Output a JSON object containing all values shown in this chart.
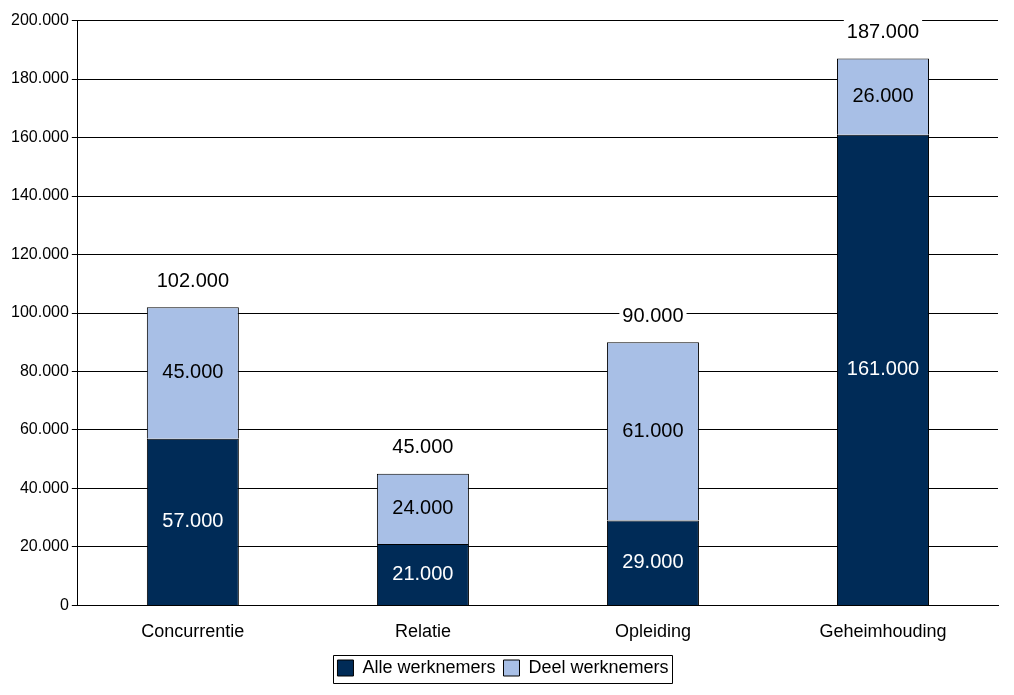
{
  "chart_data": {
    "type": "bar",
    "stacked": true,
    "categories": [
      "Concurrentie",
      "Relatie",
      "Opleiding",
      "Geheimhouding"
    ],
    "series": [
      {
        "name": "Alle werknemers",
        "color": "#002b57",
        "values": [
          57000,
          21000,
          29000,
          161000
        ],
        "value_labels": [
          "57.000",
          "21.000",
          "29.000",
          "161.000"
        ]
      },
      {
        "name": "Deel werknemers",
        "color": "#a8bfe6",
        "values": [
          45000,
          24000,
          61000,
          26000
        ],
        "value_labels": [
          "45.000",
          "24.000",
          "61.000",
          "26.000"
        ]
      }
    ],
    "totals": [
      "102.000",
      "45.000",
      "90.000",
      "187.000"
    ],
    "ylim": [
      0,
      200000
    ],
    "yticks": [
      {
        "value": 0,
        "label": "0"
      },
      {
        "value": 20000,
        "label": "20.000"
      },
      {
        "value": 40000,
        "label": "40.000"
      },
      {
        "value": 60000,
        "label": "60.000"
      },
      {
        "value": 80000,
        "label": "80.000"
      },
      {
        "value": 100000,
        "label": "100.000"
      },
      {
        "value": 120000,
        "label": "120.000"
      },
      {
        "value": 140000,
        "label": "140.000"
      },
      {
        "value": 160000,
        "label": "160.000"
      },
      {
        "value": 180000,
        "label": "180.000"
      },
      {
        "value": 200000,
        "label": "200.000"
      }
    ],
    "grid": "y",
    "legend": "bottom"
  }
}
